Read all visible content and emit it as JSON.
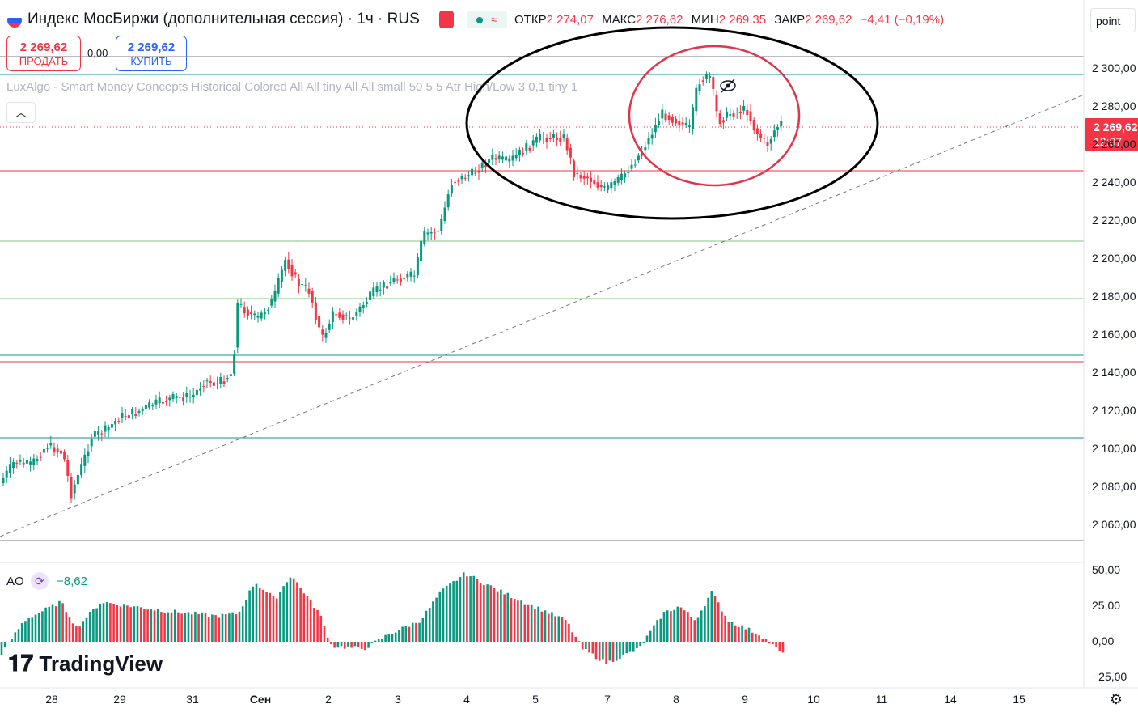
{
  "header": {
    "title": "Индекс МосБиржи (дополнительная сессия) · 1ч · RUS",
    "ohlc": {
      "open_label": "ОТКР",
      "open": "2 274,07",
      "high_label": "МАКС",
      "high": "2 276,62",
      "low_label": "МИН",
      "low": "2 269,35",
      "close_label": "ЗАКР",
      "close": "2 269,62",
      "change": "−4,41 (−0,19%)"
    },
    "sell": {
      "price": "2 269,62",
      "label": "ПРОДАТЬ"
    },
    "spread": "0,00",
    "buy": {
      "price": "2 269,62",
      "label": "КУПИТЬ"
    }
  },
  "indicator_label": "LuxAlgo - Smart Money Concepts Historical Colored All All tiny All All small 50 5 5 Atr High/Low 3 0,1 tiny 1",
  "point_button": "point",
  "price_tag": {
    "price": "2 269,62",
    "time": "12:07"
  },
  "y_axis": [
    "2 300,00",
    "2 280,00",
    "2 260,00",
    "2 240,00",
    "2 220,00",
    "2 200,00",
    "2 180,00",
    "2 160,00",
    "2 140,00",
    "2 120,00",
    "2 100,00",
    "2 080,00",
    "2 060,00"
  ],
  "ao": {
    "label": "AO",
    "value": "−8,62",
    "axis": [
      "50,00",
      "25,00",
      "0,00",
      "−25,00"
    ]
  },
  "x_axis": [
    "28",
    "29",
    "31",
    "Сен",
    "2",
    "3",
    "4",
    "5",
    "7",
    "8",
    "9",
    "10",
    "11",
    "14",
    "15"
  ],
  "logo": "TradingView",
  "colors": {
    "up": "#089981",
    "down": "#f23645",
    "accent": "#2962ff"
  }
}
